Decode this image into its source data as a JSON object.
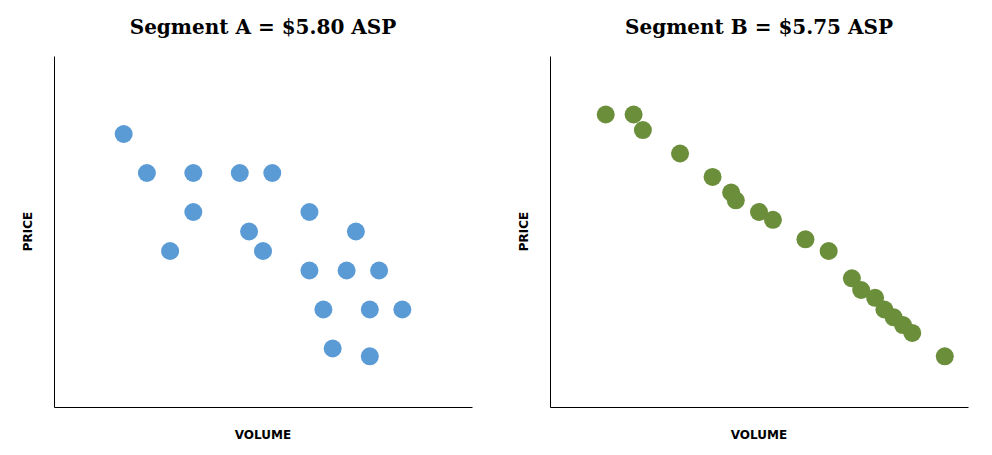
{
  "chart_data": [
    {
      "type": "scatter",
      "title": "Segment A = $5.80 ASP",
      "xlabel": "VOLUME",
      "ylabel": "PRICE",
      "color": "#5b9bd5",
      "xlim": [
        0,
        9
      ],
      "ylim": [
        1.5,
        10.5
      ],
      "tick_labels": false,
      "x": [
        1.5,
        2.0,
        3.0,
        4.0,
        4.7,
        3.0,
        4.2,
        5.5,
        6.5,
        2.5,
        4.5,
        5.5,
        6.3,
        7.0,
        5.8,
        6.8,
        7.5,
        6.0,
        6.8
      ],
      "values": [
        8.5,
        7.5,
        7.5,
        7.5,
        7.5,
        6.5,
        6.0,
        6.5,
        6.0,
        5.5,
        5.5,
        5.0,
        5.0,
        5.0,
        4.0,
        4.0,
        4.0,
        3.0,
        2.8
      ]
    },
    {
      "type": "scatter",
      "title": "Segment B = $5.75 ASP",
      "xlabel": "VOLUME",
      "ylabel": "PRICE",
      "color": "#6b8e3b",
      "xlim": [
        0,
        9
      ],
      "ylim": [
        1.5,
        10.5
      ],
      "tick_labels": false,
      "x": [
        1.2,
        1.8,
        2.0,
        2.8,
        3.5,
        3.9,
        4.0,
        4.5,
        4.8,
        5.5,
        6.0,
        6.5,
        6.7,
        7.0,
        7.2,
        7.4,
        7.6,
        7.8,
        8.5
      ],
      "values": [
        9.0,
        9.0,
        8.6,
        8.0,
        7.4,
        7.0,
        6.8,
        6.5,
        6.3,
        5.8,
        5.5,
        4.8,
        4.5,
        4.3,
        4.0,
        3.8,
        3.6,
        3.4,
        2.8
      ]
    }
  ]
}
